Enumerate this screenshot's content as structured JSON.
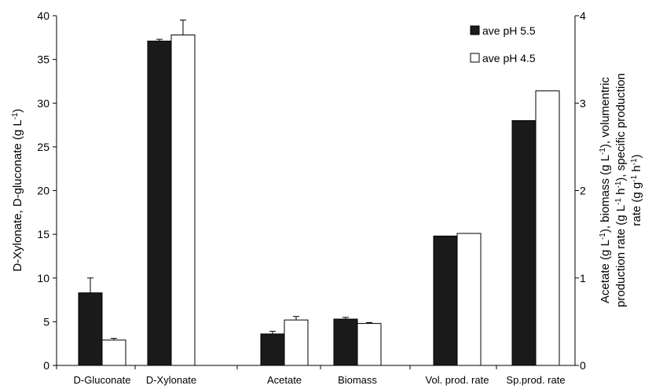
{
  "chart_data": {
    "type": "bar",
    "left_axis": {
      "title_lines": [
        {
          "segments": [
            {
              "text": "D-Xylonate, D-gluconate  (g L",
              "sup": false
            },
            {
              "text": "-1",
              "sup": true
            },
            {
              "text": ")",
              "sup": false
            }
          ]
        }
      ],
      "ylim": [
        0,
        40
      ],
      "ticks": [
        0,
        5,
        10,
        15,
        20,
        25,
        30,
        35,
        40
      ]
    },
    "right_axis": {
      "title_lines": [
        {
          "segments": [
            {
              "text": "Acetate (g L",
              "sup": false
            },
            {
              "text": "-1",
              "sup": true
            },
            {
              "text": "), biomass (g L",
              "sup": false
            },
            {
              "text": "-1",
              "sup": true
            },
            {
              "text": "), volumentric",
              "sup": false
            }
          ]
        },
        {
          "segments": [
            {
              "text": "production rate (g L",
              "sup": false
            },
            {
              "text": "-1",
              "sup": true
            },
            {
              "text": " h",
              "sup": false
            },
            {
              "text": "-1",
              "sup": true
            },
            {
              "text": "), specific production",
              "sup": false
            }
          ]
        },
        {
          "segments": [
            {
              "text": "rate (g g",
              "sup": false
            },
            {
              "text": "-1",
              "sup": true
            },
            {
              "text": " h",
              "sup": false
            },
            {
              "text": "-1",
              "sup": true
            },
            {
              "text": ")",
              "sup": false
            }
          ]
        }
      ],
      "ylim": [
        0,
        4
      ],
      "ticks": [
        0,
        1,
        2,
        3,
        4
      ]
    },
    "categories": [
      "D-Gluconate",
      "D-Xylonate",
      "Acetate",
      "Biomass",
      "Vol. prod. rate",
      "Sp.prod. rate"
    ],
    "category_axis": [
      "left",
      "left",
      "right",
      "right",
      "right",
      "right"
    ],
    "series": [
      {
        "name": "ave pH 5.5",
        "color": "#1a1a1a",
        "values": [
          8.3,
          37.1,
          0.36,
          0.53,
          1.48,
          2.8
        ],
        "errors": [
          1.7,
          0.2,
          0.03,
          0.02,
          null,
          null
        ]
      },
      {
        "name": "ave pH 4.5",
        "color": "#ffffff",
        "values": [
          2.9,
          37.8,
          0.52,
          0.48,
          1.51,
          3.14
        ],
        "errors": [
          0.2,
          1.7,
          0.04,
          0.01,
          null,
          null
        ]
      }
    ],
    "legend_position": "top-right",
    "grid": false
  }
}
